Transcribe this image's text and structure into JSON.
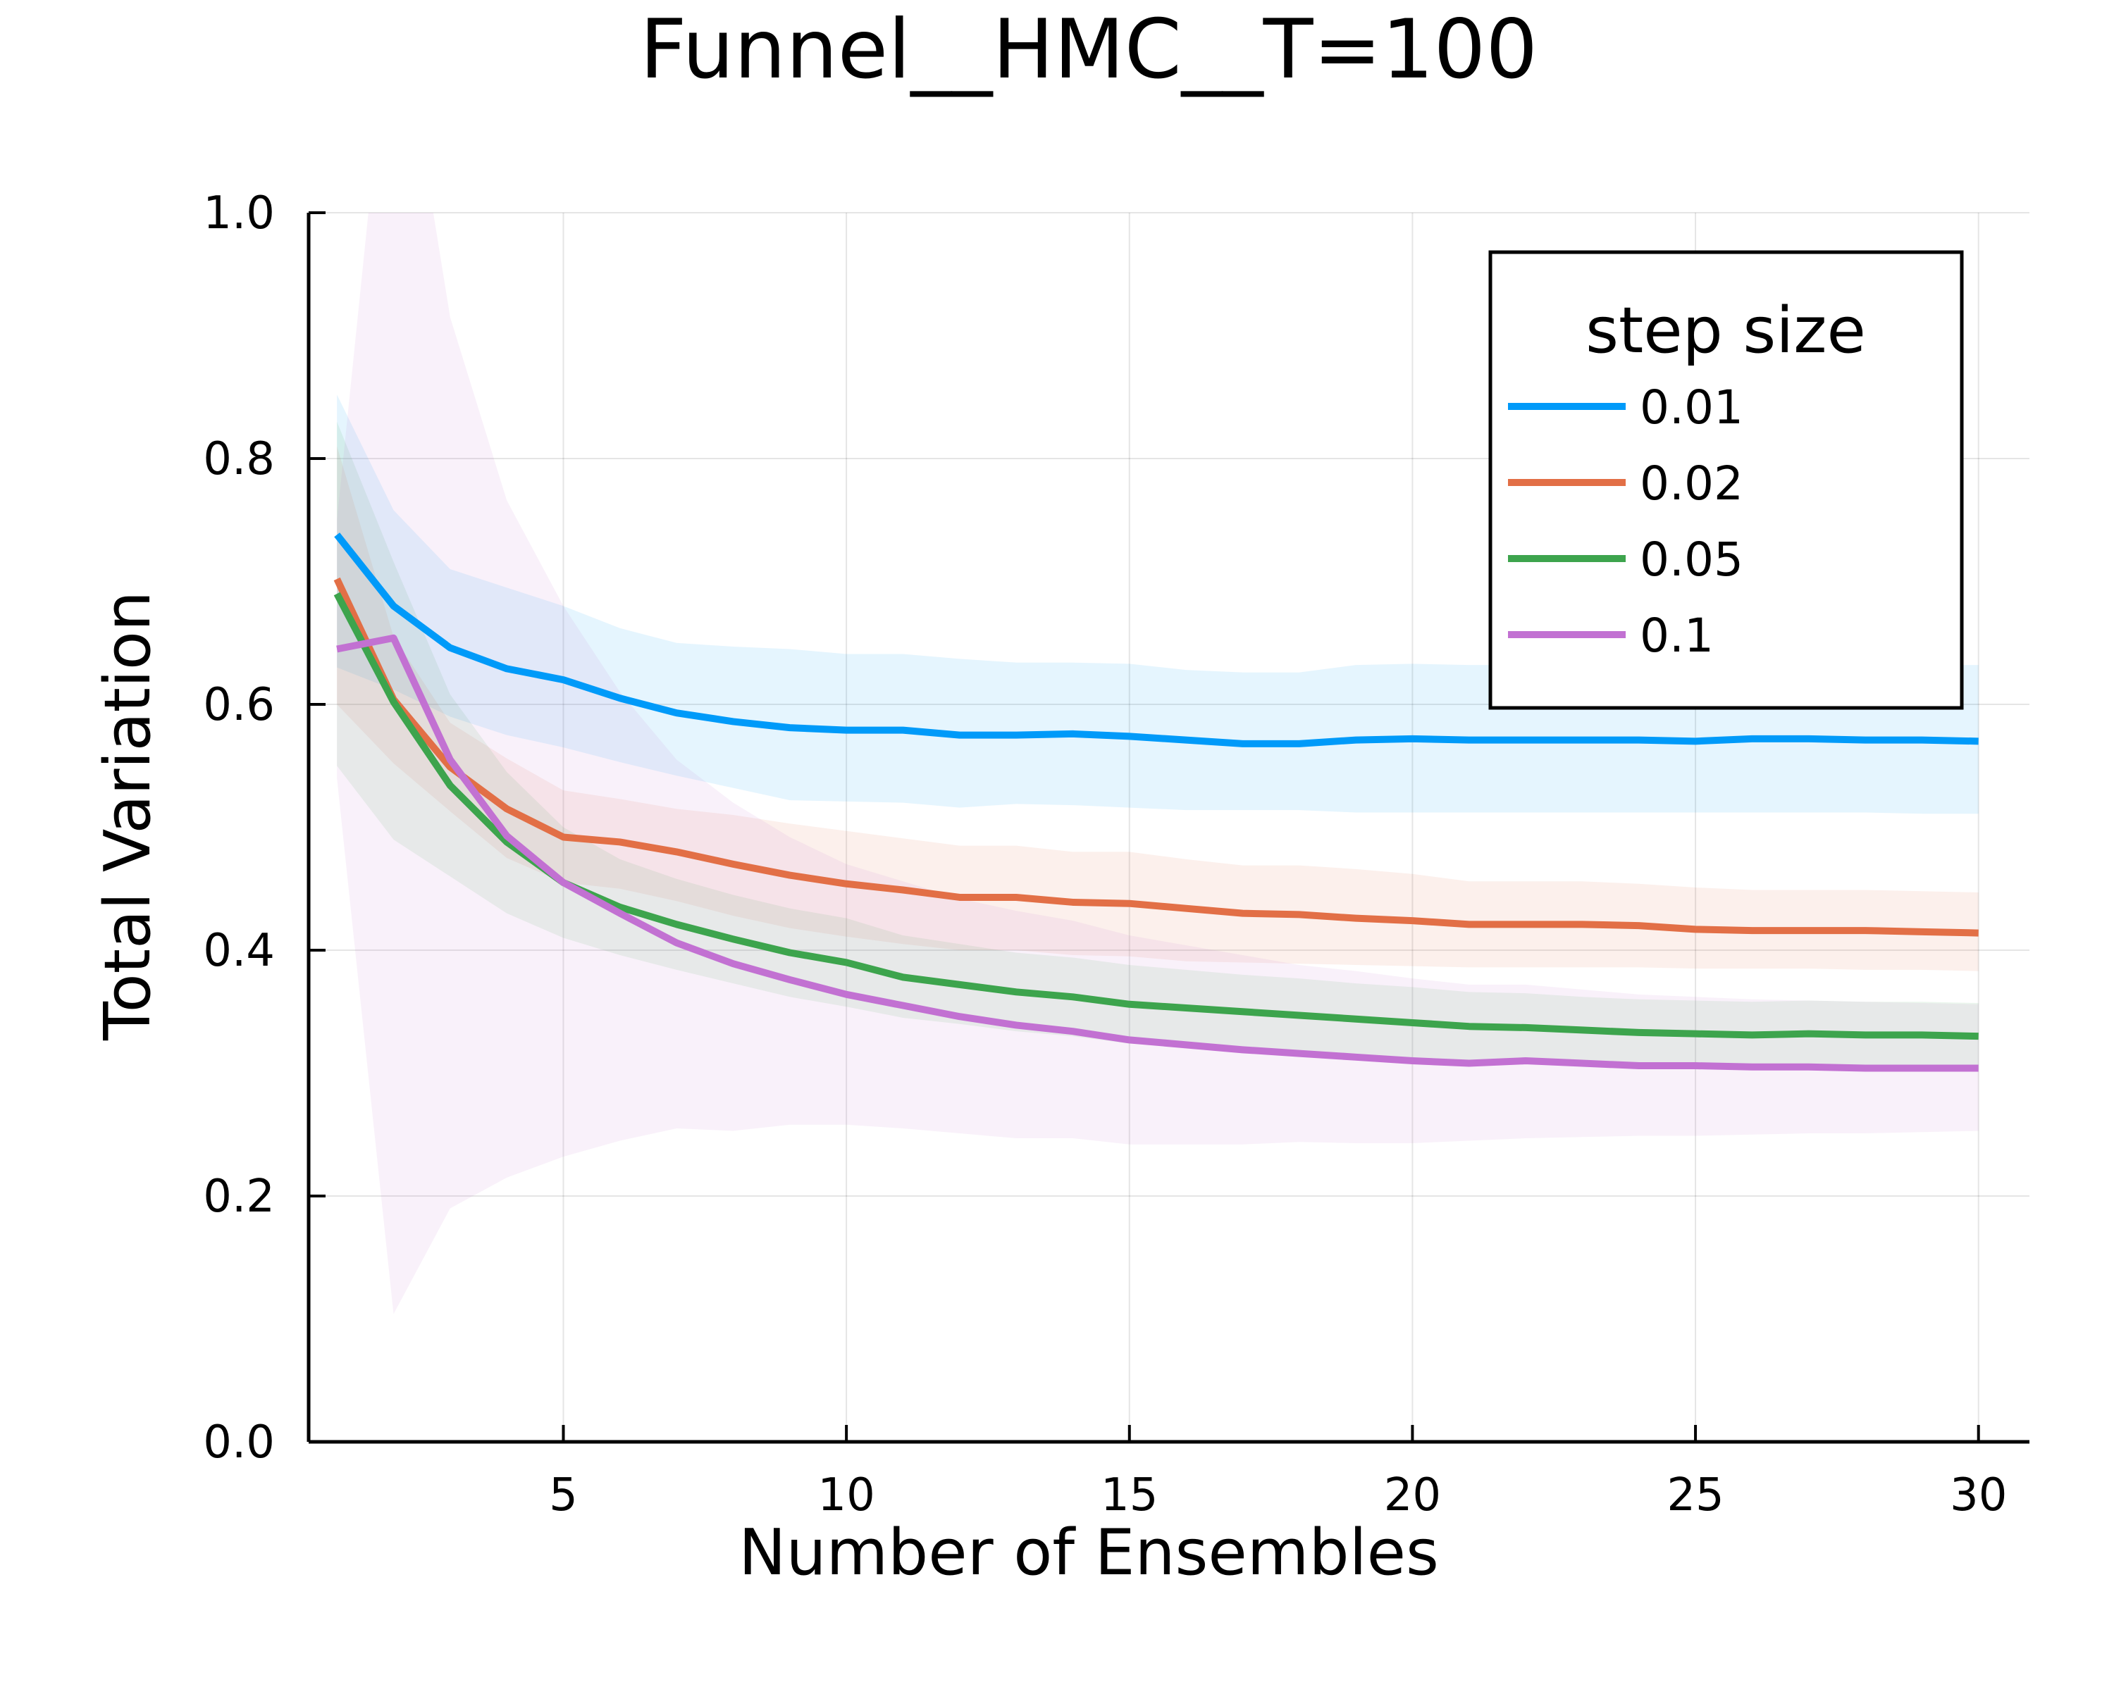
{
  "chart_data": {
    "type": "line",
    "title": "Funnel__HMC__T=100",
    "xlabel": "Number of Ensembles",
    "ylabel": "Total Variation",
    "xlim": [
      0.5,
      30.9
    ],
    "ylim": [
      0,
      1
    ],
    "x_ticks": [
      5,
      10,
      15,
      20,
      25,
      30
    ],
    "y_ticks": [
      0.0,
      0.2,
      0.4,
      0.6,
      0.8,
      1.0
    ],
    "x_tick_labels": [
      "5",
      "10",
      "15",
      "20",
      "25",
      "30"
    ],
    "y_tick_labels": [
      "0.0",
      "0.2",
      "0.4",
      "0.6",
      "0.8",
      "1.0"
    ],
    "grid": true,
    "legend": {
      "title": "step size",
      "position": "top-right"
    },
    "x": [
      1,
      2,
      3,
      4,
      5,
      6,
      7,
      8,
      9,
      10,
      11,
      12,
      13,
      14,
      15,
      16,
      17,
      18,
      19,
      20,
      21,
      22,
      23,
      24,
      25,
      26,
      27,
      28,
      29,
      30
    ],
    "series": [
      {
        "name": "0.01",
        "color": "#009af9",
        "values": [
          0.738,
          0.68,
          0.646,
          0.629,
          0.62,
          0.605,
          0.593,
          0.586,
          0.581,
          0.579,
          0.579,
          0.575,
          0.575,
          0.576,
          0.574,
          0.571,
          0.568,
          0.568,
          0.571,
          0.572,
          0.571,
          0.571,
          0.571,
          0.571,
          0.57,
          0.572,
          0.572,
          0.571,
          0.571,
          0.57
        ],
        "lower": [
          0.63,
          0.612,
          0.59,
          0.575,
          0.565,
          0.553,
          0.542,
          0.532,
          0.522,
          0.521,
          0.52,
          0.516,
          0.519,
          0.518,
          0.516,
          0.514,
          0.514,
          0.514,
          0.512,
          0.512,
          0.512,
          0.512,
          0.512,
          0.512,
          0.512,
          0.512,
          0.512,
          0.512,
          0.511,
          0.511
        ],
        "upper": [
          0.852,
          0.758,
          0.71,
          0.695,
          0.68,
          0.662,
          0.65,
          0.647,
          0.645,
          0.641,
          0.641,
          0.637,
          0.634,
          0.634,
          0.633,
          0.628,
          0.626,
          0.626,
          0.632,
          0.633,
          0.632,
          0.632,
          0.632,
          0.632,
          0.63,
          0.632,
          0.632,
          0.632,
          0.632,
          0.632
        ]
      },
      {
        "name": "0.02",
        "color": "#e26f46",
        "values": [
          0.702,
          0.604,
          0.549,
          0.515,
          0.492,
          0.488,
          0.48,
          0.47,
          0.461,
          0.454,
          0.449,
          0.443,
          0.443,
          0.439,
          0.438,
          0.434,
          0.43,
          0.429,
          0.426,
          0.424,
          0.421,
          0.421,
          0.421,
          0.42,
          0.417,
          0.416,
          0.416,
          0.416,
          0.415,
          0.414
        ],
        "lower": [
          0.6,
          0.552,
          0.513,
          0.475,
          0.455,
          0.45,
          0.44,
          0.428,
          0.418,
          0.411,
          0.405,
          0.4,
          0.4,
          0.396,
          0.395,
          0.391,
          0.39,
          0.389,
          0.388,
          0.387,
          0.386,
          0.386,
          0.386,
          0.386,
          0.385,
          0.385,
          0.385,
          0.384,
          0.384,
          0.383
        ],
        "upper": [
          0.81,
          0.655,
          0.585,
          0.556,
          0.53,
          0.523,
          0.515,
          0.51,
          0.503,
          0.497,
          0.491,
          0.485,
          0.485,
          0.48,
          0.48,
          0.474,
          0.469,
          0.469,
          0.466,
          0.462,
          0.456,
          0.456,
          0.456,
          0.454,
          0.451,
          0.449,
          0.449,
          0.449,
          0.448,
          0.447
        ]
      },
      {
        "name": "0.05",
        "color": "#3da44d",
        "values": [
          0.69,
          0.602,
          0.534,
          0.488,
          0.455,
          0.435,
          0.421,
          0.409,
          0.398,
          0.39,
          0.378,
          0.372,
          0.366,
          0.362,
          0.356,
          0.353,
          0.35,
          0.347,
          0.344,
          0.341,
          0.338,
          0.337,
          0.335,
          0.333,
          0.332,
          0.331,
          0.332,
          0.331,
          0.331,
          0.33
        ],
        "lower": [
          0.55,
          0.49,
          0.46,
          0.43,
          0.41,
          0.396,
          0.384,
          0.373,
          0.362,
          0.354,
          0.345,
          0.34,
          0.334,
          0.33,
          0.324,
          0.322,
          0.32,
          0.317,
          0.315,
          0.312,
          0.31,
          0.309,
          0.308,
          0.306,
          0.305,
          0.305,
          0.305,
          0.305,
          0.304,
          0.304
        ],
        "upper": [
          0.83,
          0.716,
          0.608,
          0.545,
          0.5,
          0.474,
          0.458,
          0.445,
          0.434,
          0.426,
          0.412,
          0.405,
          0.398,
          0.394,
          0.388,
          0.384,
          0.38,
          0.377,
          0.373,
          0.37,
          0.366,
          0.365,
          0.362,
          0.36,
          0.359,
          0.358,
          0.359,
          0.358,
          0.358,
          0.357
        ]
      },
      {
        "name": "0.1",
        "color": "#c271d2",
        "values": [
          0.645,
          0.654,
          0.555,
          0.493,
          0.455,
          0.43,
          0.406,
          0.389,
          0.376,
          0.364,
          0.355,
          0.346,
          0.339,
          0.334,
          0.327,
          0.323,
          0.319,
          0.316,
          0.313,
          0.31,
          0.308,
          0.31,
          0.308,
          0.306,
          0.306,
          0.305,
          0.305,
          0.304,
          0.304,
          0.304
        ],
        "lower": [
          0.54,
          0.104,
          0.19,
          0.215,
          0.232,
          0.245,
          0.255,
          0.253,
          0.258,
          0.258,
          0.255,
          0.251,
          0.247,
          0.247,
          0.242,
          0.242,
          0.242,
          0.244,
          0.243,
          0.243,
          0.245,
          0.247,
          0.248,
          0.249,
          0.249,
          0.25,
          0.251,
          0.251,
          0.252,
          0.253
        ],
        "upper": [
          0.75,
          1.2,
          0.915,
          0.766,
          0.68,
          0.61,
          0.555,
          0.52,
          0.492,
          0.47,
          0.456,
          0.442,
          0.432,
          0.424,
          0.412,
          0.404,
          0.396,
          0.388,
          0.383,
          0.377,
          0.372,
          0.372,
          0.368,
          0.364,
          0.362,
          0.36,
          0.359,
          0.358,
          0.357,
          0.356
        ]
      }
    ]
  }
}
